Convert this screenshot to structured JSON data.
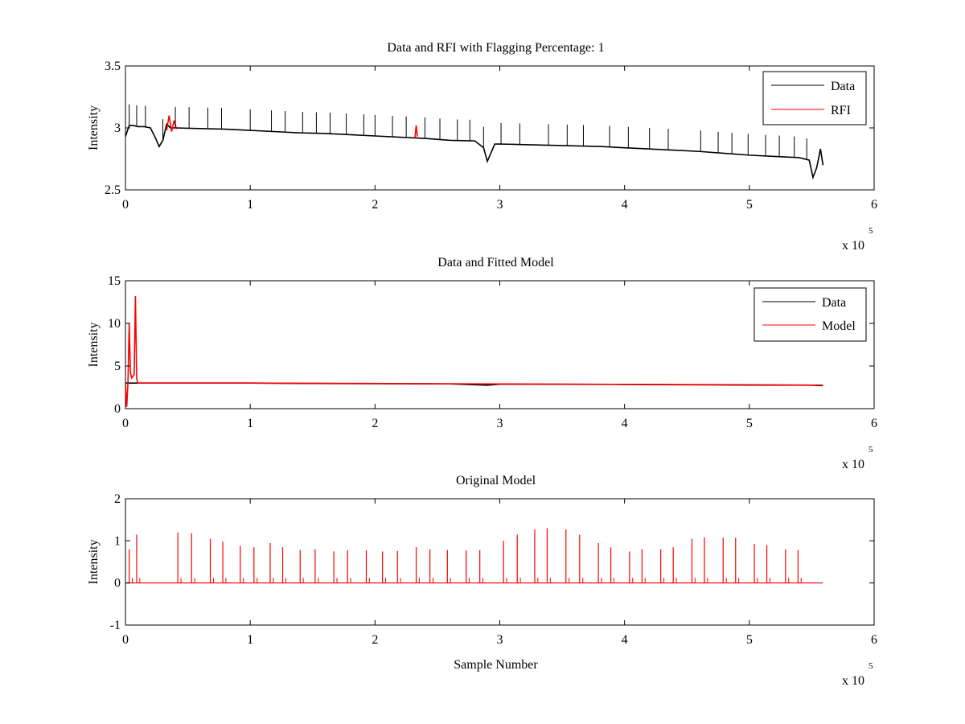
{
  "chart_data": [
    {
      "type": "line",
      "title": "Data and RFI with Flagging Percentage: 1",
      "xlabel": "",
      "ylabel": "Intensity",
      "xlim": [
        0,
        600000
      ],
      "ylim": [
        2.5,
        3.5
      ],
      "xticks": [
        0,
        1,
        2,
        3,
        4,
        5,
        6
      ],
      "yticks": [
        "2.5",
        "3",
        "3.5"
      ],
      "x_multiplier": "x 10",
      "x_multiplier_exponent": "5",
      "legend": {
        "position": "top-right",
        "entries": [
          "Data",
          "RFI"
        ]
      },
      "colors": {
        "Data": "#000000",
        "RFI": "#ff0000"
      },
      "series": [
        {
          "name": "Data",
          "x": [
            0,
            3000,
            6000,
            10000,
            15000,
            20000,
            24000,
            27000,
            30000,
            33000,
            36000,
            40000,
            60000,
            80000,
            100000,
            120000,
            140000,
            160000,
            180000,
            200000,
            220000,
            240000,
            260000,
            280000,
            287000,
            290000,
            293000,
            296000,
            300000,
            320000,
            340000,
            360000,
            380000,
            400000,
            420000,
            440000,
            460000,
            480000,
            500000,
            520000,
            540000,
            548000,
            551000,
            554000,
            557000,
            559000
          ],
          "y": [
            2.93,
            3.02,
            3.02,
            3.01,
            3.01,
            3.0,
            2.92,
            2.85,
            2.9,
            3.03,
            3.0,
            3.0,
            2.995,
            2.99,
            2.98,
            2.97,
            2.96,
            2.955,
            2.945,
            2.935,
            2.925,
            2.915,
            2.9,
            2.895,
            2.84,
            2.73,
            2.8,
            2.87,
            2.87,
            2.865,
            2.86,
            2.855,
            2.85,
            2.84,
            2.83,
            2.82,
            2.81,
            2.795,
            2.78,
            2.77,
            2.76,
            2.74,
            2.6,
            2.68,
            2.83,
            2.7
          ]
        },
        {
          "name": "RFI",
          "x": [
            33000,
            35000,
            37000,
            39000,
            41000,
            232000,
            233000,
            234000
          ],
          "y": [
            2.98,
            3.1,
            2.97,
            3.06,
            2.99,
            2.92,
            3.02,
            2.93
          ]
        }
      ],
      "spike_x": [
        3000,
        9000,
        16000,
        30000,
        40000,
        51000,
        66000,
        77000,
        100000,
        117000,
        128000,
        142000,
        153000,
        164000,
        177000,
        191000,
        200000,
        214000,
        225000,
        240000,
        252000,
        266000,
        276000,
        287000,
        301000,
        316000,
        339000,
        354000,
        367000,
        388000,
        403000,
        420000,
        435000,
        461000,
        475000,
        486000,
        499000,
        513000,
        524000,
        536000,
        546000
      ]
    },
    {
      "type": "line",
      "title": "Data and Fitted Model",
      "xlabel": "",
      "ylabel": "Intensity",
      "xlim": [
        0,
        600000
      ],
      "ylim": [
        0,
        15
      ],
      "xticks": [
        0,
        1,
        2,
        3,
        4,
        5,
        6
      ],
      "yticks": [
        "0",
        "5",
        "10",
        "15"
      ],
      "x_multiplier": "x 10",
      "x_multiplier_exponent": "5",
      "legend": {
        "position": "top-right",
        "entries": [
          "Data",
          "Model"
        ]
      },
      "colors": {
        "Data": "#000000",
        "Model": "#ff0000"
      },
      "series": [
        {
          "name": "Data",
          "x": [
            0,
            30000,
            60000,
            100000,
            150000,
            200000,
            260000,
            290000,
            300000,
            350000,
            400000,
            450000,
            500000,
            550000,
            559000
          ],
          "y": [
            3.0,
            3.0,
            3.0,
            3.0,
            2.95,
            2.93,
            2.9,
            2.75,
            2.87,
            2.86,
            2.84,
            2.8,
            2.77,
            2.75,
            2.7
          ]
        },
        {
          "name": "Model",
          "x": [
            0,
            1000,
            2000,
            3000,
            4000,
            5000,
            6000,
            7000,
            8000,
            9000,
            10000,
            30000,
            100000,
            200000,
            300000,
            400000,
            500000,
            559000
          ],
          "y": [
            3.0,
            0.2,
            3.0,
            10.0,
            4.2,
            3.6,
            3.8,
            4.0,
            13.2,
            3.5,
            3.0,
            3.0,
            3.0,
            2.95,
            2.9,
            2.85,
            2.8,
            2.75
          ]
        }
      ]
    },
    {
      "type": "line",
      "title": "Original Model",
      "xlabel": "Sample Number",
      "ylabel": "Intensity",
      "xlim": [
        0,
        600000
      ],
      "ylim": [
        -1,
        2
      ],
      "xticks": [
        0,
        1,
        2,
        3,
        4,
        5,
        6
      ],
      "yticks": [
        "-1",
        "0",
        "1",
        "2"
      ],
      "x_multiplier": "x 10",
      "x_multiplier_exponent": "5",
      "colors": {
        "Model": "#ff0000"
      },
      "series": [
        {
          "name": "Model",
          "baseline": 0,
          "xmax": 559000,
          "spikes_x": [
            3000,
            9000,
            42000,
            53000,
            68000,
            78000,
            92000,
            103000,
            116000,
            126000,
            140000,
            152000,
            167000,
            178000,
            193000,
            206000,
            218000,
            233000,
            244000,
            258000,
            273000,
            284000,
            303000,
            314000,
            328000,
            338000,
            353000,
            364000,
            379000,
            389000,
            404000,
            414000,
            429000,
            439000,
            454000,
            464000,
            479000,
            489000,
            504000,
            514000,
            529000,
            539000
          ],
          "spikes_y": [
            0.8,
            1.15,
            1.2,
            1.18,
            1.05,
            0.98,
            0.88,
            0.85,
            0.95,
            0.85,
            0.78,
            0.8,
            0.75,
            0.78,
            0.78,
            0.75,
            0.76,
            0.85,
            0.8,
            0.78,
            0.77,
            0.78,
            1.0,
            1.15,
            1.27,
            1.3,
            1.27,
            1.15,
            0.95,
            0.85,
            0.75,
            0.8,
            0.8,
            0.85,
            1.05,
            1.08,
            1.07,
            1.07,
            0.93,
            0.9,
            0.8,
            0.78
          ]
        }
      ]
    }
  ]
}
